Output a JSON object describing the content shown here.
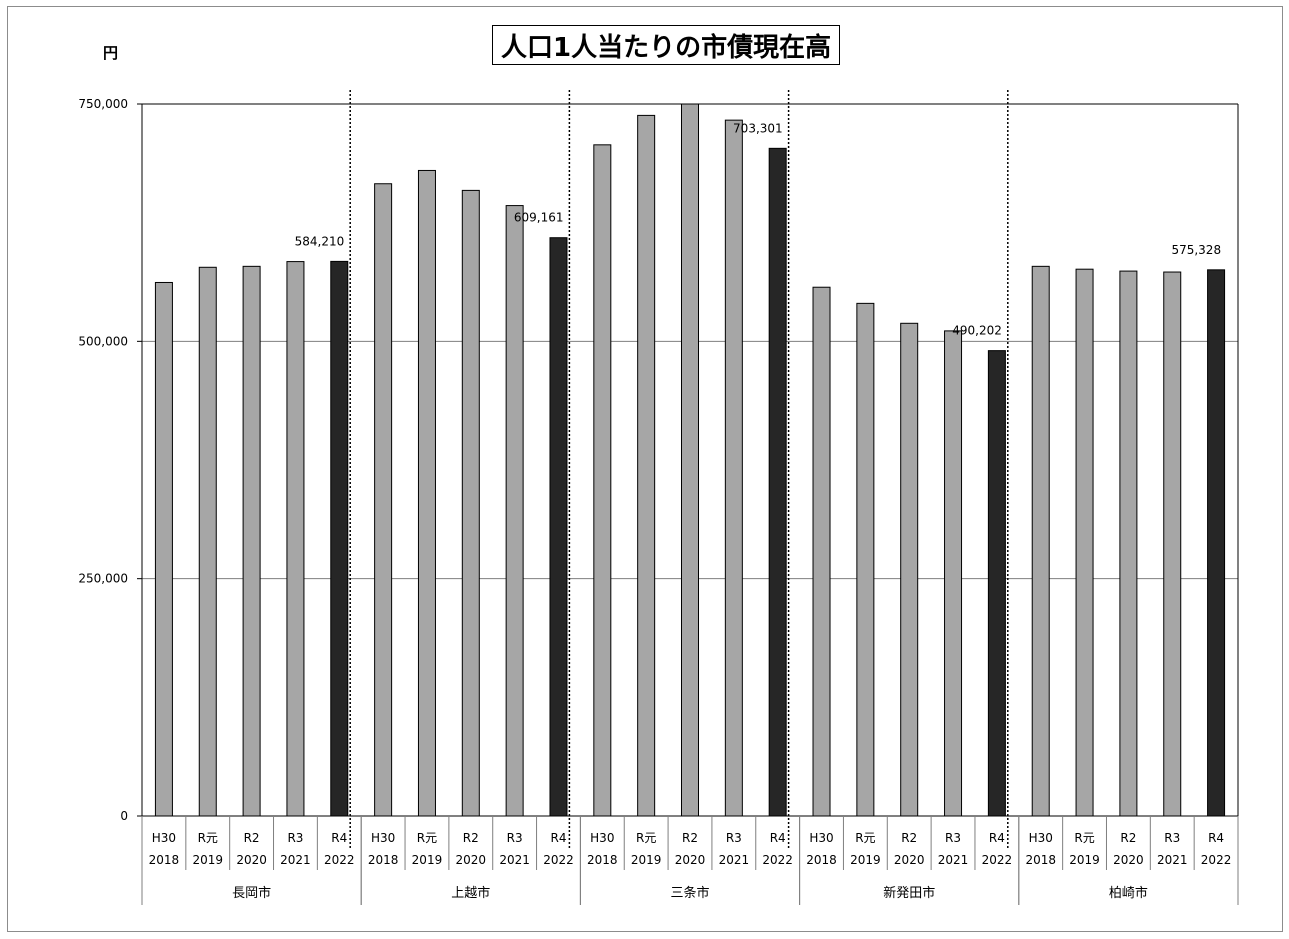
{
  "chart_data": {
    "type": "bar",
    "title": "人口1人当たりの市債現在高",
    "unit_label": "円",
    "ylim": [
      0,
      750000
    ],
    "yticks": [
      0,
      250000,
      500000,
      750000
    ],
    "ytick_labels": [
      "0",
      "250,000",
      "500,000",
      "750,000"
    ],
    "grid": true,
    "legend": "none",
    "colors": {
      "past": "#a6a6a6",
      "latest": "#262626",
      "grid": "#7f7f7f",
      "outline": "#000000"
    },
    "year_labels": [
      {
        "era": "H30",
        "year": "2018"
      },
      {
        "era": "R元",
        "year": "2019"
      },
      {
        "era": "R2",
        "year": "2020"
      },
      {
        "era": "R3",
        "year": "2021"
      },
      {
        "era": "R4",
        "year": "2022"
      }
    ],
    "groups": [
      {
        "name": "長岡市",
        "values": [
          562000,
          578000,
          579000,
          584000,
          584210
        ],
        "label_value": "584,210"
      },
      {
        "name": "上越市",
        "values": [
          666000,
          680000,
          659000,
          643000,
          609161
        ],
        "label_value": "609,161"
      },
      {
        "name": "三条市",
        "values": [
          707000,
          738000,
          750000,
          733000,
          703301
        ],
        "label_value": "703,301"
      },
      {
        "name": "新発田市",
        "values": [
          557000,
          540000,
          519000,
          511000,
          490202
        ],
        "label_value": "490,202"
      },
      {
        "name": "柏崎市",
        "values": [
          579000,
          576000,
          574000,
          573000,
          575328
        ],
        "label_value": "575,328"
      }
    ]
  }
}
